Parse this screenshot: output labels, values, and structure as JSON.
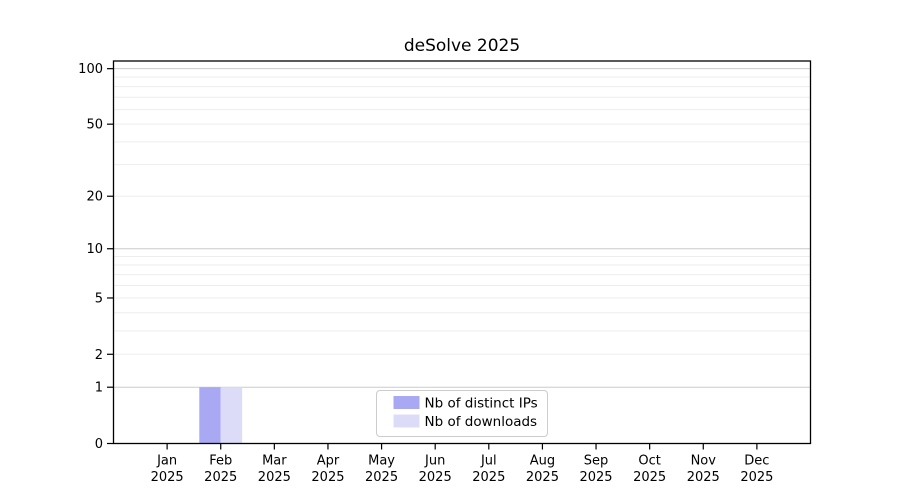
{
  "figure": {
    "background": "#ffffff"
  },
  "chart_data": {
    "type": "bar",
    "title": "deSolve 2025",
    "categories": [
      "Jan",
      "Feb",
      "Mar",
      "Apr",
      "May",
      "Jun",
      "Jul",
      "Aug",
      "Sep",
      "Oct",
      "Nov",
      "Dec"
    ],
    "category_year": "2025",
    "series": [
      {
        "name": "Nb of distinct IPs",
        "color": "#a9a9f3",
        "values": [
          0,
          1,
          0,
          0,
          0,
          0,
          0,
          0,
          0,
          0,
          0,
          0
        ]
      },
      {
        "name": "Nb of downloads",
        "color": "#dcdcf8",
        "values": [
          0,
          1,
          0,
          0,
          0,
          0,
          0,
          0,
          0,
          0,
          0,
          0
        ]
      }
    ],
    "xlabel": "",
    "ylabel": "",
    "yscale": "log1p",
    "ylim": [
      0,
      110
    ],
    "yticks": [
      0,
      1,
      2,
      5,
      10,
      20,
      50,
      100
    ],
    "grid": {
      "on": true,
      "minor_values": [
        2,
        3,
        4,
        5,
        6,
        7,
        8,
        9,
        20,
        30,
        40,
        50,
        60,
        70,
        80,
        90
      ],
      "major_values": [
        1,
        10,
        100
      ],
      "minor_color": "#ededed",
      "major_color": "#cccccc"
    },
    "legend": {
      "position": "lower center",
      "border_color": "#cccccc",
      "background": "#ffffff"
    },
    "axis_color": "#000000",
    "text_color": "#000000"
  }
}
